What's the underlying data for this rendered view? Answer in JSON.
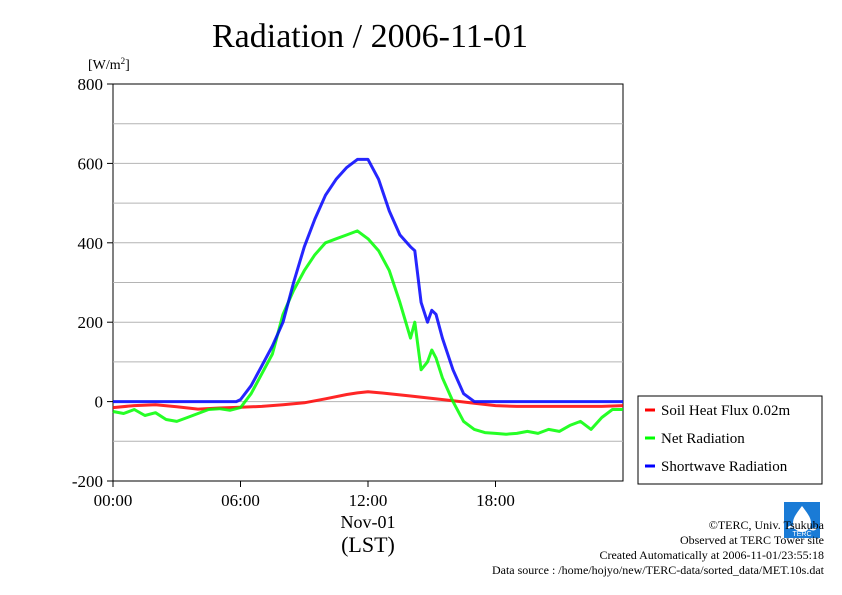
{
  "chart_data": {
    "type": "line",
    "title": "Radiation / 2006-11-01",
    "ylabel": "[W/m²]",
    "ylabel_parts": {
      "base": "[W/m",
      "sup": "2",
      "close": "]"
    },
    "xlabel_date": "Nov-01",
    "xlabel_unit": "(LST)",
    "ylim": [
      -200,
      800
    ],
    "xlim": [
      0,
      24
    ],
    "y_ticks": [
      -200,
      0,
      200,
      400,
      600,
      800
    ],
    "x_ticks": [
      {
        "value": 0,
        "label": "00:00"
      },
      {
        "value": 6,
        "label": "06:00"
      },
      {
        "value": 12,
        "label": "12:00"
      },
      {
        "value": 18,
        "label": "18:00"
      }
    ],
    "grid": true,
    "legend_position": "right",
    "series": [
      {
        "name": "Soil Heat Flux 0.02m",
        "color": "#ff0000",
        "x": [
          0,
          1,
          2,
          3,
          4,
          5,
          6,
          7,
          8,
          9,
          10,
          11,
          11.5,
          12,
          13,
          14,
          15,
          16,
          17,
          18,
          19,
          20,
          21,
          22,
          23,
          24
        ],
        "y": [
          -15,
          -10,
          -8,
          -13,
          -19,
          -16,
          -14,
          -12,
          -8,
          -3,
          7,
          18,
          22,
          25,
          20,
          14,
          8,
          2,
          -4,
          -10,
          -12,
          -12,
          -12,
          -12,
          -12,
          -10
        ]
      },
      {
        "name": "Net Radiation",
        "color": "#00ff00",
        "x": [
          0,
          0.5,
          1,
          1.5,
          2,
          2.5,
          3,
          3.5,
          4,
          4.5,
          5,
          5.5,
          6,
          6.5,
          7,
          7.5,
          8,
          8.5,
          9,
          9.5,
          10,
          10.5,
          11,
          11.5,
          12,
          12.5,
          13,
          13.5,
          14,
          14.2,
          14.5,
          14.8,
          15,
          15.2,
          15.5,
          16,
          16.5,
          17,
          17.5,
          18,
          18.5,
          19,
          19.5,
          20,
          20.5,
          21,
          21.5,
          22,
          22.5,
          23,
          23.5,
          24
        ],
        "y": [
          -25,
          -30,
          -20,
          -35,
          -28,
          -45,
          -50,
          -40,
          -30,
          -20,
          -18,
          -22,
          -15,
          20,
          70,
          120,
          220,
          280,
          330,
          370,
          400,
          410,
          420,
          430,
          410,
          380,
          330,
          250,
          160,
          200,
          80,
          100,
          130,
          110,
          60,
          0,
          -50,
          -70,
          -78,
          -80,
          -82,
          -80,
          -75,
          -80,
          -70,
          -75,
          -60,
          -50,
          -70,
          -40,
          -20,
          -20
        ]
      },
      {
        "name": "Shortwave Radiation",
        "color": "#0000ff",
        "x": [
          0,
          1,
          2,
          3,
          4,
          5,
          5.8,
          6,
          6.5,
          7,
          7.5,
          8,
          8.5,
          9,
          9.5,
          10,
          10.5,
          11,
          11.5,
          12,
          12.5,
          13,
          13.5,
          14,
          14.2,
          14.5,
          14.8,
          15,
          15.2,
          15.5,
          16,
          16.5,
          17,
          18,
          19,
          20,
          21,
          22,
          23,
          24
        ],
        "y": [
          0,
          0,
          0,
          0,
          0,
          0,
          0,
          5,
          40,
          90,
          140,
          200,
          300,
          390,
          460,
          520,
          560,
          590,
          610,
          610,
          560,
          480,
          420,
          390,
          380,
          250,
          200,
          230,
          220,
          160,
          80,
          20,
          0,
          0,
          0,
          0,
          0,
          0,
          0,
          0
        ]
      }
    ]
  },
  "footer": {
    "copyright": "©TERC, Univ. Tsukuba",
    "observed": "Observed at TERC Tower site",
    "created": "Created Automatically at 2006-11-01/23:55:18",
    "source": "Data source : /home/hojyo/new/TERC-data/sorted_data/MET.10s.dat"
  },
  "logo": {
    "text": "TERC",
    "color": "#1a7bd6"
  }
}
